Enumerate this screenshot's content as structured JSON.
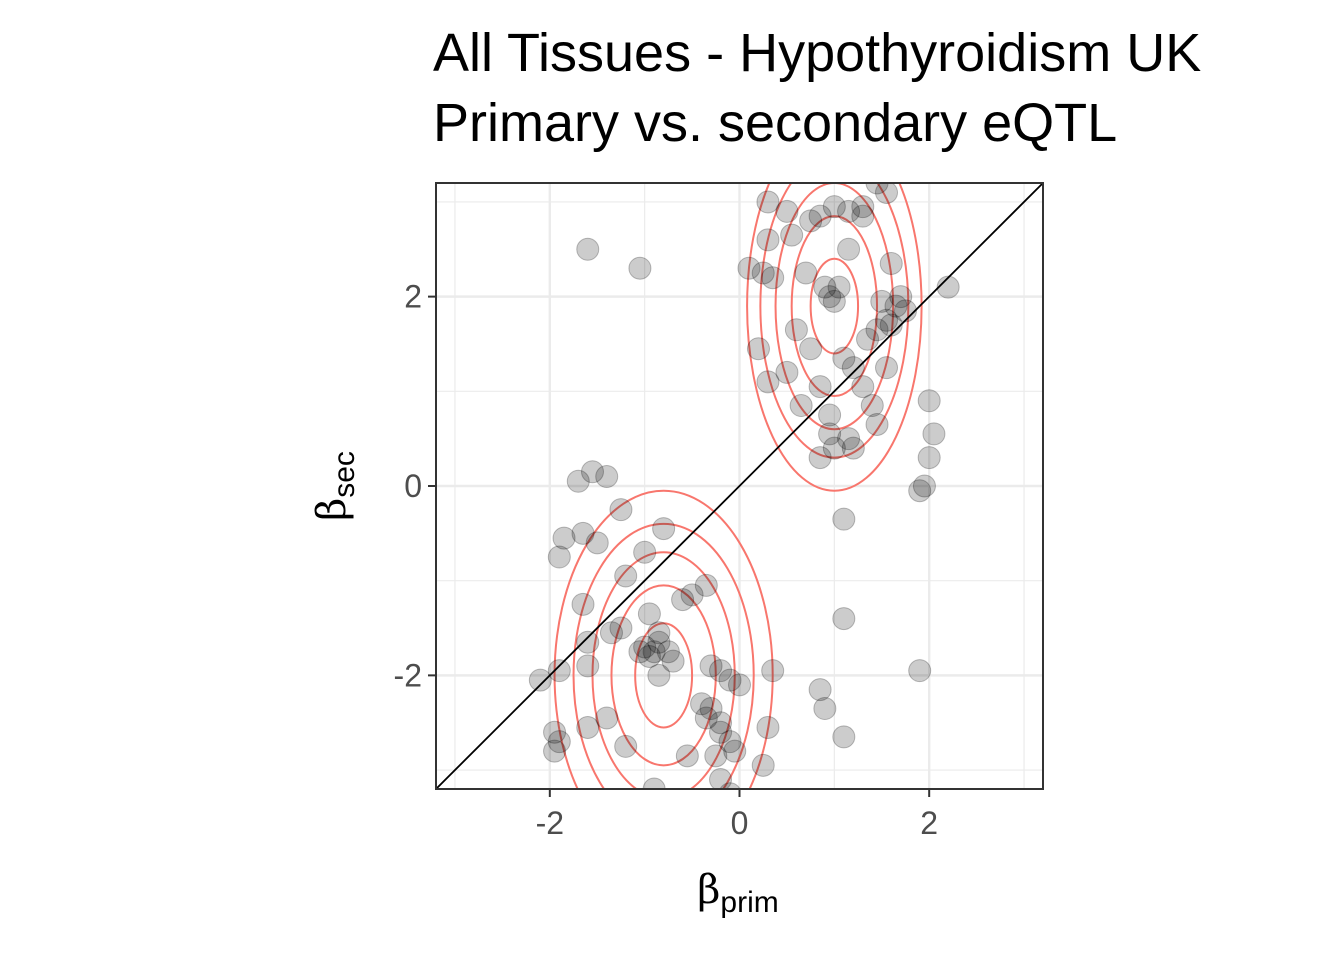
{
  "chart_data": {
    "type": "scatter",
    "title": "All Tissues - Hypothyroidism UK",
    "subtitle": "Primary vs. secondary eQTL",
    "xlabel": {
      "symbol": "β",
      "subscript": "prim"
    },
    "ylabel": {
      "symbol": "β",
      "subscript": "sec"
    },
    "xlim": [
      -3.2,
      3.2
    ],
    "ylim": [
      -3.2,
      3.2
    ],
    "x_ticks": [
      -2,
      0,
      2
    ],
    "y_ticks": [
      -2,
      0,
      2
    ],
    "x_tick_labels": [
      "-2",
      "0",
      "2"
    ],
    "y_tick_labels": [
      "-2",
      "0",
      "2"
    ],
    "grid": true,
    "reference_line": "y = x",
    "colors": {
      "points": "#000000",
      "contour": "#f8766d",
      "reference": "#000000",
      "grid": "#ebebeb"
    },
    "points": [
      [
        -1.6,
        2.5
      ],
      [
        -1.05,
        2.3
      ],
      [
        0.3,
        3.0
      ],
      [
        0.5,
        2.9
      ],
      [
        0.85,
        2.85
      ],
      [
        1.0,
        2.95
      ],
      [
        1.15,
        2.9
      ],
      [
        1.3,
        2.95
      ],
      [
        1.45,
        3.2
      ],
      [
        1.55,
        3.1
      ],
      [
        0.1,
        2.3
      ],
      [
        0.25,
        2.25
      ],
      [
        0.35,
        2.2
      ],
      [
        0.3,
        2.6
      ],
      [
        0.55,
        2.65
      ],
      [
        0.75,
        2.8
      ],
      [
        1.15,
        2.5
      ],
      [
        1.3,
        2.85
      ],
      [
        1.6,
        2.35
      ],
      [
        0.7,
        2.25
      ],
      [
        0.9,
        2.1
      ],
      [
        0.95,
        2.0
      ],
      [
        1.0,
        1.95
      ],
      [
        1.05,
        2.1
      ],
      [
        1.5,
        1.95
      ],
      [
        1.55,
        1.75
      ],
      [
        1.65,
        1.9
      ],
      [
        1.7,
        2.0
      ],
      [
        1.75,
        1.85
      ],
      [
        1.6,
        1.7
      ],
      [
        1.45,
        1.65
      ],
      [
        1.35,
        1.55
      ],
      [
        1.55,
        1.25
      ],
      [
        2.2,
        2.1
      ],
      [
        0.2,
        1.45
      ],
      [
        0.3,
        1.1
      ],
      [
        0.5,
        1.2
      ],
      [
        0.6,
        1.65
      ],
      [
        0.75,
        1.45
      ],
      [
        0.85,
        1.05
      ],
      [
        0.65,
        0.85
      ],
      [
        1.1,
        1.35
      ],
      [
        1.2,
        1.25
      ],
      [
        1.3,
        1.05
      ],
      [
        1.4,
        0.85
      ],
      [
        1.45,
        0.65
      ],
      [
        0.95,
        0.75
      ],
      [
        0.95,
        0.55
      ],
      [
        1.0,
        0.4
      ],
      [
        1.15,
        0.5
      ],
      [
        1.2,
        0.4
      ],
      [
        0.85,
        0.3
      ],
      [
        1.1,
        -0.35
      ],
      [
        2.0,
        0.9
      ],
      [
        2.05,
        0.55
      ],
      [
        2.0,
        0.3
      ],
      [
        1.95,
        0.0
      ],
      [
        1.9,
        -0.05
      ],
      [
        1.1,
        -1.4
      ],
      [
        1.9,
        -1.95
      ],
      [
        -1.7,
        0.05
      ],
      [
        -1.55,
        0.15
      ],
      [
        -1.4,
        0.1
      ],
      [
        -1.25,
        -0.25
      ],
      [
        -0.8,
        -0.45
      ],
      [
        -1.9,
        -0.75
      ],
      [
        -1.85,
        -0.55
      ],
      [
        -1.65,
        -0.5
      ],
      [
        -1.5,
        -0.6
      ],
      [
        -1.0,
        -0.7
      ],
      [
        -1.2,
        -0.95
      ],
      [
        -0.6,
        -1.2
      ],
      [
        -0.5,
        -1.15
      ],
      [
        -0.35,
        -1.05
      ],
      [
        -1.65,
        -1.25
      ],
      [
        -1.35,
        -1.55
      ],
      [
        -0.95,
        -1.35
      ],
      [
        -1.25,
        -1.5
      ],
      [
        -1.6,
        -1.65
      ],
      [
        -1.05,
        -1.75
      ],
      [
        -1.0,
        -1.7
      ],
      [
        -0.95,
        -1.8
      ],
      [
        -0.85,
        -1.65
      ],
      [
        -0.75,
        -1.75
      ],
      [
        -0.85,
        -1.55
      ],
      [
        -0.9,
        -1.75
      ],
      [
        -0.7,
        -1.85
      ],
      [
        -0.85,
        -2.0
      ],
      [
        -1.9,
        -1.95
      ],
      [
        -1.6,
        -1.9
      ],
      [
        -2.1,
        -2.05
      ],
      [
        -0.3,
        -1.9
      ],
      [
        -0.2,
        -1.95
      ],
      [
        -0.1,
        -2.05
      ],
      [
        0.0,
        -2.1
      ],
      [
        0.35,
        -1.95
      ],
      [
        -0.4,
        -2.3
      ],
      [
        -0.3,
        -2.35
      ],
      [
        -0.35,
        -2.45
      ],
      [
        -0.2,
        -2.5
      ],
      [
        -0.2,
        -2.6
      ],
      [
        -0.1,
        -2.7
      ],
      [
        -0.05,
        -2.8
      ],
      [
        0.3,
        -2.55
      ],
      [
        0.25,
        -2.95
      ],
      [
        -1.4,
        -2.45
      ],
      [
        -1.6,
        -2.55
      ],
      [
        -1.95,
        -2.6
      ],
      [
        -1.9,
        -2.7
      ],
      [
        -1.95,
        -2.8
      ],
      [
        -1.2,
        -2.75
      ],
      [
        -0.55,
        -2.85
      ],
      [
        -0.25,
        -2.85
      ],
      [
        -0.2,
        -3.1
      ],
      [
        -0.1,
        -3.25
      ],
      [
        -0.9,
        -3.2
      ],
      [
        -1.2,
        -3.35
      ],
      [
        0.85,
        -2.15
      ],
      [
        0.9,
        -2.35
      ],
      [
        1.1,
        -2.65
      ]
    ],
    "contour_groups": [
      {
        "center": [
          1.0,
          1.9
        ],
        "radii": [
          [
            0.25,
            0.5
          ],
          [
            0.45,
            0.95
          ],
          [
            0.62,
            1.3
          ],
          [
            0.78,
            1.6
          ],
          [
            0.92,
            1.95
          ]
        ]
      },
      {
        "center": [
          -0.8,
          -2.0
        ],
        "radii": [
          [
            0.3,
            0.55
          ],
          [
            0.55,
            0.95
          ],
          [
            0.75,
            1.3
          ],
          [
            0.95,
            1.6
          ],
          [
            1.15,
            1.95
          ]
        ]
      }
    ]
  }
}
